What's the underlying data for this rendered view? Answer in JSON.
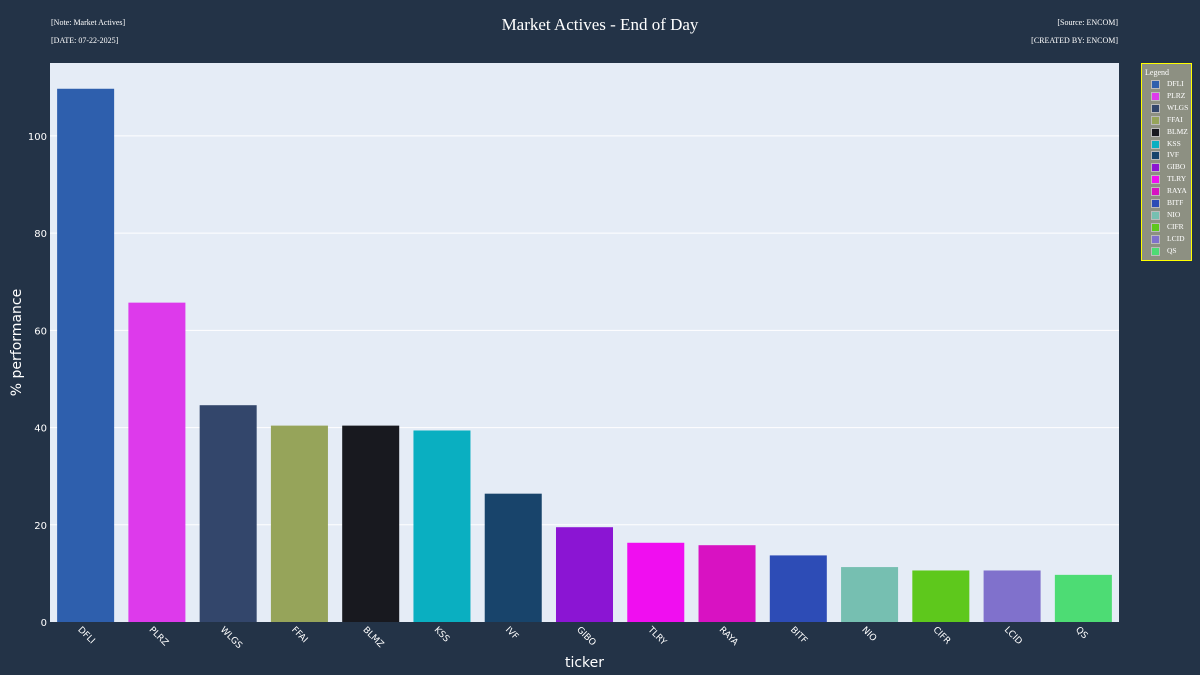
{
  "header": {
    "title": "Market Actives - End of Day",
    "note_top_left": "[Note: Market Actives]",
    "note_bottom_left": "[DATE: 07-22-2025]",
    "note_top_right": "[Source: ENCOM]",
    "note_bottom_right": "[CREATED BY: ENCOM]"
  },
  "legend": {
    "title": "Legend"
  },
  "colors": {
    "page_background": "#233347",
    "plot_background": "#e5ecf6",
    "legend_background": "#8d9082",
    "legend_border": "#ffff00"
  },
  "chart_data": {
    "type": "bar",
    "xlabel": "ticker",
    "ylabel": "% performance",
    "ylim": [
      0,
      115
    ],
    "yticks": [
      0,
      20,
      40,
      60,
      80,
      100
    ],
    "grid": true,
    "legend_position": "right",
    "categories": [
      "DFLI",
      "PLRZ",
      "WLGS",
      "FFAI",
      "BLMZ",
      "KSS",
      "IVF",
      "GIBO",
      "TLRY",
      "RAYA",
      "BITF",
      "NIO",
      "CIFR",
      "LCID",
      "QS"
    ],
    "values": [
      109.7,
      65.7,
      44.6,
      40.4,
      40.4,
      39.4,
      26.4,
      19.5,
      16.3,
      15.8,
      13.7,
      11.3,
      10.6,
      10.6,
      9.7
    ],
    "colors": [
      "#2e5fad",
      "#dd3aeb",
      "#33466b",
      "#96a45a",
      "#18191f",
      "#0aafc1",
      "#18446b",
      "#8b15d3",
      "#f00ef0",
      "#d812c2",
      "#2d4cb6",
      "#76bfb1",
      "#5ec81c",
      "#8071cc",
      "#4ddc74"
    ]
  }
}
